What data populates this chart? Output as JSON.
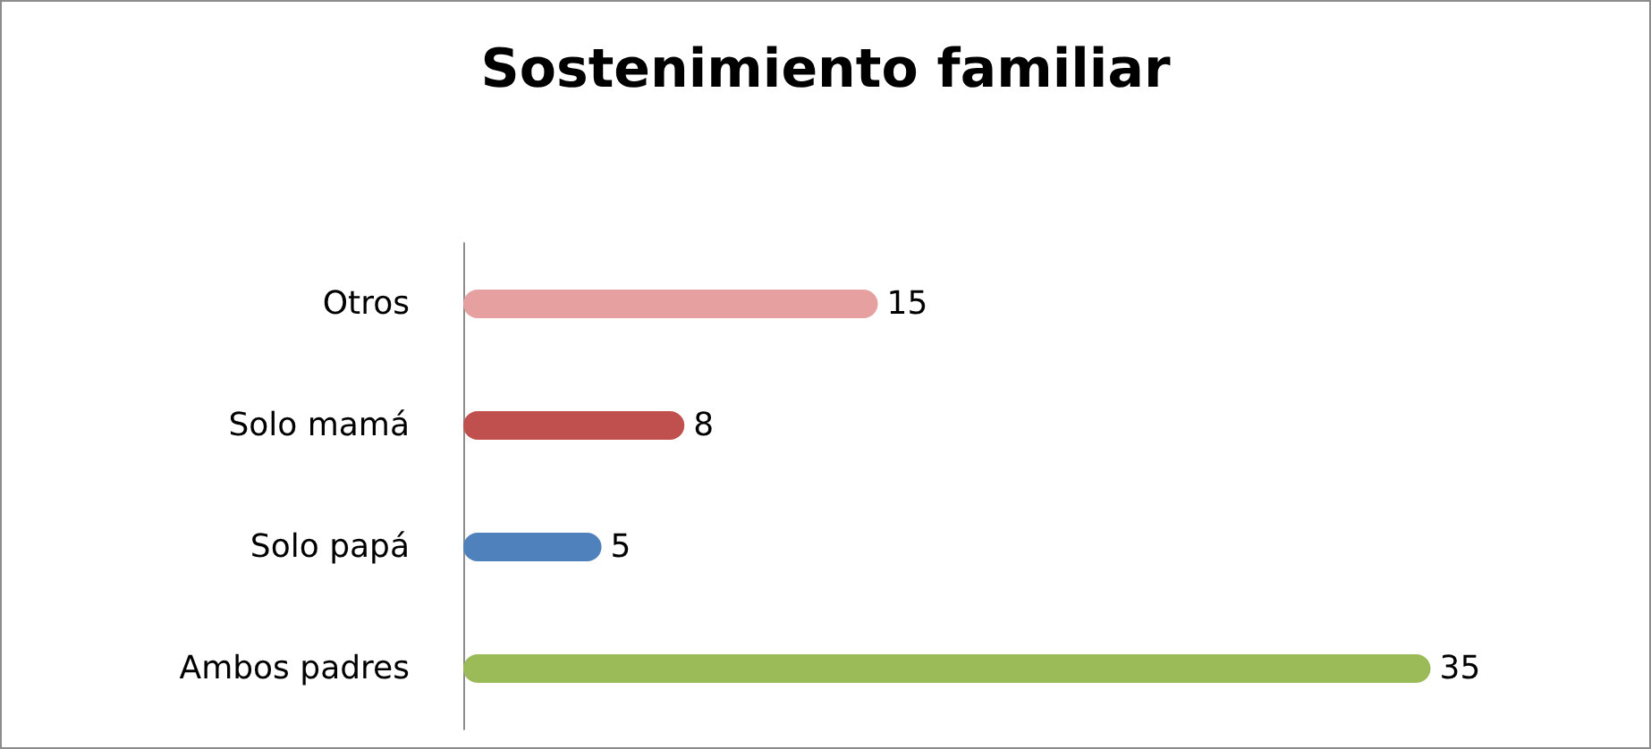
{
  "chart_data": {
    "type": "bar",
    "orientation": "horizontal",
    "title": "Sostenimiento familiar",
    "categories": [
      "Otros",
      "Solo mamá",
      "Solo papá",
      "Ambos padres"
    ],
    "values": [
      15,
      8,
      5,
      35
    ],
    "colors": [
      "#e6a0a0",
      "#c0504d",
      "#4f81bd",
      "#9bbb59"
    ],
    "data_labels": true
  }
}
